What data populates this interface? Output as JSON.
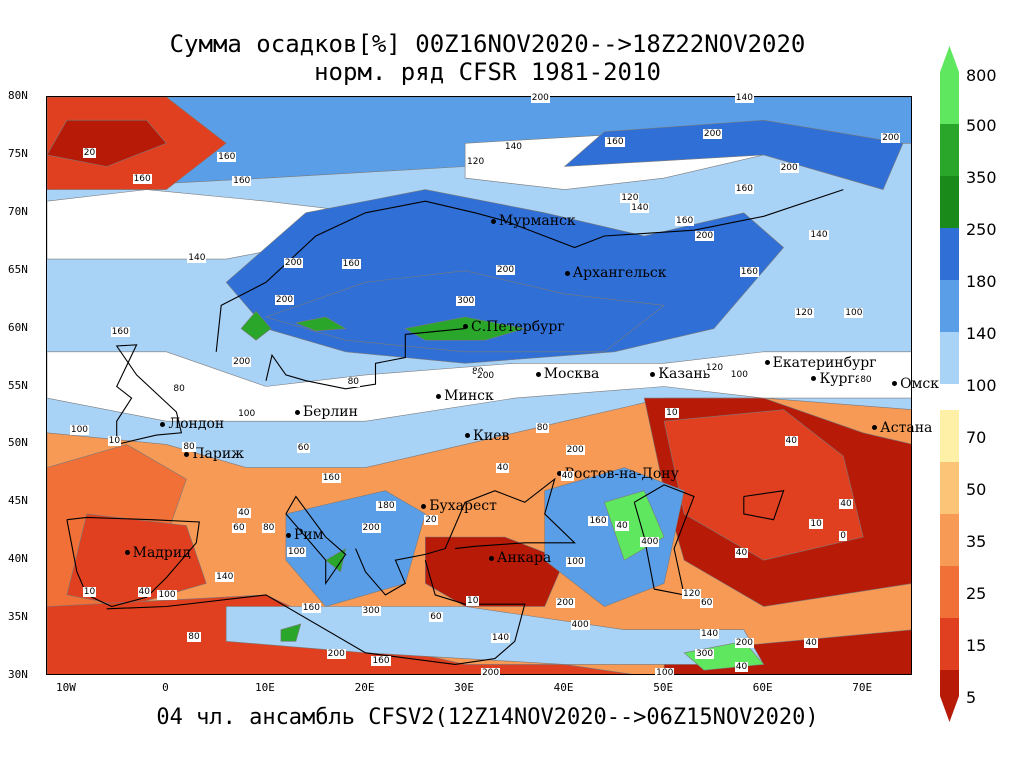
{
  "title_line1": "Сумма осадков[%] 00Z16NOV2020-->18Z22NOV2020",
  "title_line2": "норм. ряд CFSR 1981-2010",
  "footer": "04 чл. ансамбль CFSV2(12Z14NOV2020-->06Z15NOV2020)",
  "chart_data": {
    "type": "heatmap",
    "title": "Сумма осадков[%] 00Z16NOV2020-->18Z22NOV2020",
    "subtitle": "норм. ряд CFSR 1981-2010",
    "lon_range": [
      -12,
      75
    ],
    "lat_range": [
      30,
      80
    ],
    "x_ticks": [
      "10W",
      "0",
      "10E",
      "20E",
      "30E",
      "40E",
      "50E",
      "60E",
      "70E"
    ],
    "y_ticks": [
      "30N",
      "35N",
      "40N",
      "45N",
      "50N",
      "55N",
      "60N",
      "65N",
      "70N",
      "75N",
      "80N"
    ],
    "legend": [
      {
        "label": "800",
        "color": "#5fe85f"
      },
      {
        "label": "500",
        "color": "#2aa62a"
      },
      {
        "label": "350",
        "color": "#1a8a1a"
      },
      {
        "label": "250",
        "color": "#2f6fd6"
      },
      {
        "label": "180",
        "color": "#5b9ee8"
      },
      {
        "label": "140",
        "color": "#a9d2f7"
      },
      {
        "label": "100",
        "color": "#ffffff"
      },
      {
        "label": "70",
        "color": "#fff0a8"
      },
      {
        "label": "50",
        "color": "#fbc477"
      },
      {
        "label": "35",
        "color": "#f79a56"
      },
      {
        "label": "25",
        "color": "#f07038"
      },
      {
        "label": "15",
        "color": "#e04020"
      },
      {
        "label": "5",
        "color": "#b81a08"
      }
    ],
    "cities": [
      {
        "name": "Мурманск",
        "lon": 33.1,
        "lat": 69.0
      },
      {
        "name": "Архангельск",
        "lon": 40.5,
        "lat": 64.5
      },
      {
        "name": "С.Петербург",
        "lon": 30.3,
        "lat": 59.9
      },
      {
        "name": "Москва",
        "lon": 37.6,
        "lat": 55.8
      },
      {
        "name": "Казань",
        "lon": 49.1,
        "lat": 55.8
      },
      {
        "name": "Екатеринбург",
        "lon": 60.6,
        "lat": 56.8
      },
      {
        "name": "Курган",
        "lon": 65.3,
        "lat": 55.4
      },
      {
        "name": "Омск",
        "lon": 73.4,
        "lat": 55.0
      },
      {
        "name": "Астана",
        "lon": 71.4,
        "lat": 51.2
      },
      {
        "name": "Минск",
        "lon": 27.6,
        "lat": 53.9
      },
      {
        "name": "Берлин",
        "lon": 13.4,
        "lat": 52.5
      },
      {
        "name": "Лондон",
        "lon": -0.1,
        "lat": 51.5
      },
      {
        "name": "Париж",
        "lon": 2.3,
        "lat": 48.9
      },
      {
        "name": "Киев",
        "lon": 30.5,
        "lat": 50.5
      },
      {
        "name": "Ростов-на-Дону",
        "lon": 39.7,
        "lat": 47.2
      },
      {
        "name": "Бухарест",
        "lon": 26.1,
        "lat": 44.4
      },
      {
        "name": "Рим",
        "lon": 12.5,
        "lat": 41.9
      },
      {
        "name": "Мадрид",
        "lon": -3.7,
        "lat": 40.4
      },
      {
        "name": "Анкара",
        "lon": 32.9,
        "lat": 39.9
      }
    ],
    "contour_labels": [
      {
        "v": "20",
        "lon": -7.5,
        "lat": 75.1
      },
      {
        "v": "160",
        "lon": -2.5,
        "lat": 72.8
      },
      {
        "v": "160",
        "lon": 6.0,
        "lat": 74.7
      },
      {
        "v": "160",
        "lon": 7.5,
        "lat": 72.7
      },
      {
        "v": "140",
        "lon": 3.0,
        "lat": 66.0
      },
      {
        "v": "160",
        "lon": -4.7,
        "lat": 59.6
      },
      {
        "v": "200",
        "lon": 12.7,
        "lat": 65.6
      },
      {
        "v": "160",
        "lon": 18.5,
        "lat": 65.5
      },
      {
        "v": "200",
        "lon": 11.8,
        "lat": 62.4
      },
      {
        "v": "200",
        "lon": 7.5,
        "lat": 57.0
      },
      {
        "v": "200",
        "lon": 37.5,
        "lat": 79.8
      },
      {
        "v": "140",
        "lon": 58.0,
        "lat": 79.8
      },
      {
        "v": "200",
        "lon": 54.8,
        "lat": 76.7
      },
      {
        "v": "200",
        "lon": 72.7,
        "lat": 76.4
      },
      {
        "v": "140",
        "lon": 34.8,
        "lat": 75.6
      },
      {
        "v": "120",
        "lon": 31.0,
        "lat": 74.3
      },
      {
        "v": "160",
        "lon": 45.0,
        "lat": 76.0
      },
      {
        "v": "200",
        "lon": 62.5,
        "lat": 73.8
      },
      {
        "v": "160",
        "lon": 58.0,
        "lat": 72.0
      },
      {
        "v": "120",
        "lon": 46.5,
        "lat": 71.2
      },
      {
        "v": "140",
        "lon": 47.5,
        "lat": 70.3
      },
      {
        "v": "160",
        "lon": 52.0,
        "lat": 69.2
      },
      {
        "v": "200",
        "lon": 54.0,
        "lat": 67.9
      },
      {
        "v": "140",
        "lon": 65.5,
        "lat": 68.0
      },
      {
        "v": "200",
        "lon": 34.0,
        "lat": 65.0
      },
      {
        "v": "300",
        "lon": 30.0,
        "lat": 62.3
      },
      {
        "v": "160",
        "lon": 58.5,
        "lat": 64.8
      },
      {
        "v": "120",
        "lon": 64.0,
        "lat": 61.3
      },
      {
        "v": "100",
        "lon": 69.0,
        "lat": 61.3
      },
      {
        "v": "80",
        "lon": 31.5,
        "lat": 56.2
      },
      {
        "v": "80",
        "lon": 1.5,
        "lat": 54.7
      },
      {
        "v": "80",
        "lon": 19.0,
        "lat": 55.3
      },
      {
        "v": "100",
        "lon": 8.0,
        "lat": 52.5
      },
      {
        "v": "100",
        "lon": -8.8,
        "lat": 51.2
      },
      {
        "v": "10",
        "lon": -5.0,
        "lat": 50.2
      },
      {
        "v": "80",
        "lon": 2.5,
        "lat": 49.7
      },
      {
        "v": "10",
        "lon": 51.0,
        "lat": 52.6
      },
      {
        "v": "60",
        "lon": 14.0,
        "lat": 49.6
      },
      {
        "v": "80",
        "lon": 38.0,
        "lat": 51.3
      },
      {
        "v": "40",
        "lon": 34.0,
        "lat": 47.9
      },
      {
        "v": "40",
        "lon": 40.5,
        "lat": 47.2
      },
      {
        "v": "200",
        "lon": 41.0,
        "lat": 49.4
      },
      {
        "v": "40",
        "lon": 8.0,
        "lat": 44.0
      },
      {
        "v": "60",
        "lon": 7.5,
        "lat": 42.7
      },
      {
        "v": "80",
        "lon": 10.5,
        "lat": 42.7
      },
      {
        "v": "100",
        "lon": 13.0,
        "lat": 40.6
      },
      {
        "v": "160",
        "lon": 16.5,
        "lat": 47.0
      },
      {
        "v": "180",
        "lon": 22.0,
        "lat": 44.6
      },
      {
        "v": "200",
        "lon": 20.5,
        "lat": 42.7
      },
      {
        "v": "20",
        "lon": 26.8,
        "lat": 43.4
      },
      {
        "v": "100",
        "lon": 41.0,
        "lat": 39.8
      },
      {
        "v": "400",
        "lon": 48.5,
        "lat": 41.5
      },
      {
        "v": "160",
        "lon": 43.3,
        "lat": 43.3
      },
      {
        "v": "40",
        "lon": 46.0,
        "lat": 42.9
      },
      {
        "v": "40",
        "lon": 58.0,
        "lat": 40.5
      },
      {
        "v": "40",
        "lon": 68.5,
        "lat": 44.8
      },
      {
        "v": "10",
        "lon": 65.5,
        "lat": 43.0
      },
      {
        "v": "0",
        "lon": 68.5,
        "lat": 42.0
      },
      {
        "v": "10",
        "lon": -7.5,
        "lat": 37.2
      },
      {
        "v": "40",
        "lon": -2.0,
        "lat": 37.2
      },
      {
        "v": "140",
        "lon": 5.8,
        "lat": 38.5
      },
      {
        "v": "100",
        "lon": 0.0,
        "lat": 36.9
      },
      {
        "v": "80",
        "lon": 3.0,
        "lat": 33.3
      },
      {
        "v": "160",
        "lon": 14.5,
        "lat": 35.8
      },
      {
        "v": "200",
        "lon": 17.0,
        "lat": 31.8
      },
      {
        "v": "300",
        "lon": 20.5,
        "lat": 35.5
      },
      {
        "v": "160",
        "lon": 21.5,
        "lat": 31.2
      },
      {
        "v": "60",
        "lon": 27.3,
        "lat": 35.0
      },
      {
        "v": "10",
        "lon": 31.0,
        "lat": 36.4
      },
      {
        "v": "140",
        "lon": 33.5,
        "lat": 33.2
      },
      {
        "v": "200",
        "lon": 40.0,
        "lat": 36.2
      },
      {
        "v": "400",
        "lon": 41.5,
        "lat": 34.3
      },
      {
        "v": "300",
        "lon": 54.0,
        "lat": 31.8
      },
      {
        "v": "200",
        "lon": 58.0,
        "lat": 32.8
      },
      {
        "v": "40",
        "lon": 58.0,
        "lat": 30.7
      },
      {
        "v": "140",
        "lon": 54.5,
        "lat": 33.5
      },
      {
        "v": "60",
        "lon": 54.5,
        "lat": 36.2
      },
      {
        "v": "120",
        "lon": 52.7,
        "lat": 37.0
      },
      {
        "v": "40",
        "lon": 65.0,
        "lat": 32.8
      },
      {
        "v": "200",
        "lon": 32.5,
        "lat": 30.2
      },
      {
        "v": "100",
        "lon": 50.0,
        "lat": 30.2
      },
      {
        "v": "40",
        "lon": 63.0,
        "lat": 50.2
      },
      {
        "v": "80",
        "lon": 70.5,
        "lat": 55.5
      },
      {
        "v": "100",
        "lon": 57.5,
        "lat": 55.9
      },
      {
        "v": "120",
        "lon": 55.0,
        "lat": 56.5
      },
      {
        "v": "200",
        "lon": 32.0,
        "lat": 55.8
      }
    ]
  }
}
